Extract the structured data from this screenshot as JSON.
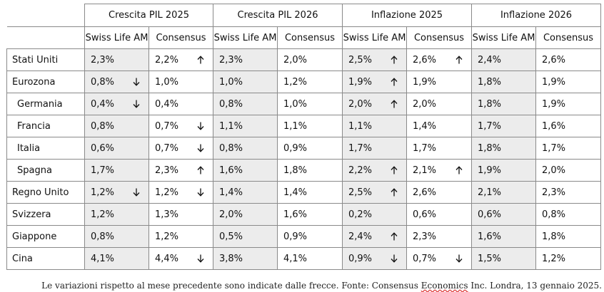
{
  "header": {
    "groups": [
      "Crescita PIL 2025",
      "Crescita PIL 2026",
      "Inflazione 2025",
      "Inflazione 2026"
    ],
    "sub_a": "Swiss Life AM",
    "sub_b": "Consensus"
  },
  "rows": [
    {
      "country": "Stati Uniti",
      "indent": false,
      "cells": [
        {
          "v": "2,3%",
          "a": ""
        },
        {
          "v": "2,2%",
          "a": "up"
        },
        {
          "v": "2,3%",
          "a": ""
        },
        {
          "v": "2,0%",
          "a": ""
        },
        {
          "v": "2,5%",
          "a": "up"
        },
        {
          "v": "2,6%",
          "a": "up"
        },
        {
          "v": "2,4%",
          "a": ""
        },
        {
          "v": "2,6%",
          "a": ""
        }
      ]
    },
    {
      "country": "Eurozona",
      "indent": false,
      "cells": [
        {
          "v": "0,8%",
          "a": "down"
        },
        {
          "v": "1,0%",
          "a": ""
        },
        {
          "v": "1,0%",
          "a": ""
        },
        {
          "v": "1,2%",
          "a": ""
        },
        {
          "v": "1,9%",
          "a": "up"
        },
        {
          "v": "1,9%",
          "a": ""
        },
        {
          "v": "1,8%",
          "a": ""
        },
        {
          "v": "1,9%",
          "a": ""
        }
      ]
    },
    {
      "country": "Germania",
      "indent": true,
      "cells": [
        {
          "v": "0,4%",
          "a": "down"
        },
        {
          "v": "0,4%",
          "a": ""
        },
        {
          "v": "0,8%",
          "a": ""
        },
        {
          "v": "1,0%",
          "a": ""
        },
        {
          "v": "2,0%",
          "a": "up"
        },
        {
          "v": "2,0%",
          "a": ""
        },
        {
          "v": "1,8%",
          "a": ""
        },
        {
          "v": "1,9%",
          "a": ""
        }
      ]
    },
    {
      "country": "Francia",
      "indent": true,
      "cells": [
        {
          "v": "0,8%",
          "a": ""
        },
        {
          "v": "0,7%",
          "a": "down"
        },
        {
          "v": "1,1%",
          "a": ""
        },
        {
          "v": "1,1%",
          "a": ""
        },
        {
          "v": "1,1%",
          "a": ""
        },
        {
          "v": "1,4%",
          "a": ""
        },
        {
          "v": "1,7%",
          "a": ""
        },
        {
          "v": "1,6%",
          "a": ""
        }
      ]
    },
    {
      "country": "Italia",
      "indent": true,
      "cells": [
        {
          "v": "0,6%",
          "a": ""
        },
        {
          "v": "0,7%",
          "a": "down"
        },
        {
          "v": "0,8%",
          "a": ""
        },
        {
          "v": "0,9%",
          "a": ""
        },
        {
          "v": "1,7%",
          "a": ""
        },
        {
          "v": "1,7%",
          "a": ""
        },
        {
          "v": "1,8%",
          "a": ""
        },
        {
          "v": "1,7%",
          "a": ""
        }
      ]
    },
    {
      "country": "Spagna",
      "indent": true,
      "cells": [
        {
          "v": "1,7%",
          "a": ""
        },
        {
          "v": "2,3%",
          "a": "up"
        },
        {
          "v": "1,6%",
          "a": ""
        },
        {
          "v": "1,8%",
          "a": ""
        },
        {
          "v": "2,2%",
          "a": "up"
        },
        {
          "v": "2,1%",
          "a": "up"
        },
        {
          "v": "1,9%",
          "a": ""
        },
        {
          "v": "2,0%",
          "a": ""
        }
      ]
    },
    {
      "country": "Regno Unito",
      "indent": false,
      "cells": [
        {
          "v": "1,2%",
          "a": "down"
        },
        {
          "v": "1,2%",
          "a": "down"
        },
        {
          "v": "1,4%",
          "a": ""
        },
        {
          "v": "1,4%",
          "a": ""
        },
        {
          "v": "2,5%",
          "a": "up"
        },
        {
          "v": "2,6%",
          "a": ""
        },
        {
          "v": "2,1%",
          "a": ""
        },
        {
          "v": "2,3%",
          "a": ""
        }
      ]
    },
    {
      "country": "Svizzera",
      "indent": false,
      "cells": [
        {
          "v": "1,2%",
          "a": ""
        },
        {
          "v": "1,3%",
          "a": ""
        },
        {
          "v": "2,0%",
          "a": ""
        },
        {
          "v": "1,6%",
          "a": ""
        },
        {
          "v": "0,2%",
          "a": ""
        },
        {
          "v": "0,6%",
          "a": ""
        },
        {
          "v": "0,6%",
          "a": ""
        },
        {
          "v": "0,8%",
          "a": ""
        }
      ]
    },
    {
      "country": "Giappone",
      "indent": false,
      "cells": [
        {
          "v": "0,8%",
          "a": ""
        },
        {
          "v": "1,2%",
          "a": ""
        },
        {
          "v": "0,5%",
          "a": ""
        },
        {
          "v": "0,9%",
          "a": ""
        },
        {
          "v": "2,4%",
          "a": "up"
        },
        {
          "v": "2,3%",
          "a": ""
        },
        {
          "v": "1,6%",
          "a": ""
        },
        {
          "v": "1,8%",
          "a": ""
        }
      ]
    },
    {
      "country": "Cina",
      "indent": false,
      "cells": [
        {
          "v": "4,1%",
          "a": ""
        },
        {
          "v": "4,4%",
          "a": "down"
        },
        {
          "v": "3,8%",
          "a": ""
        },
        {
          "v": "4,1%",
          "a": ""
        },
        {
          "v": "0,9%",
          "a": "down"
        },
        {
          "v": "0,7%",
          "a": "down"
        },
        {
          "v": "1,5%",
          "a": ""
        },
        {
          "v": "1,2%",
          "a": ""
        }
      ]
    }
  ],
  "note": {
    "before": "Le variazioni rispetto al mese precedente sono indicate dalle frecce. Fonte: Consensus ",
    "underlined": "Economics",
    "after": " Inc. Londra, 13 gennaio 2025."
  }
}
